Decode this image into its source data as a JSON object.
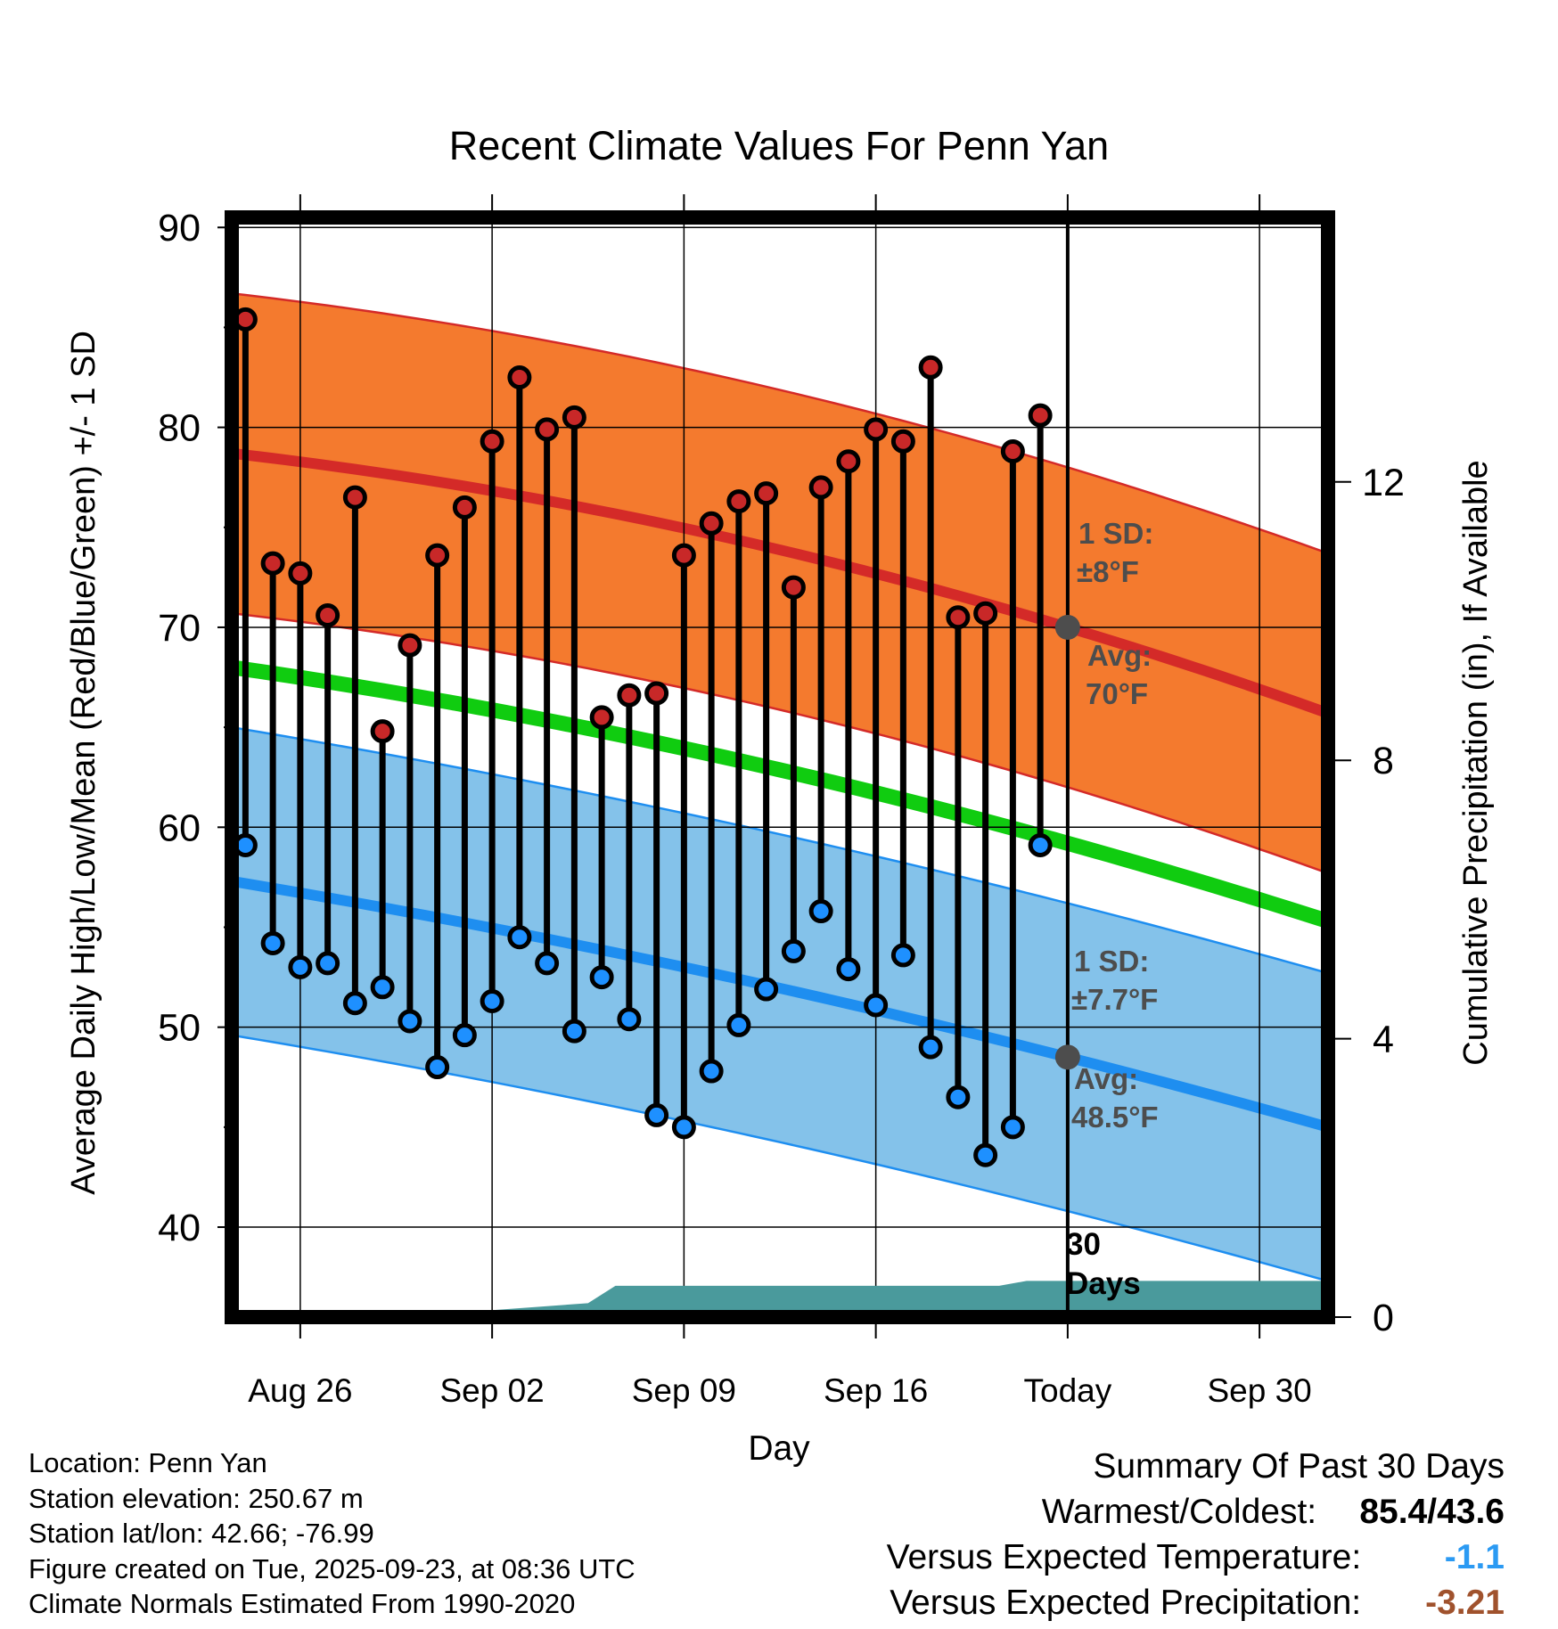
{
  "chart_data": {
    "type": "line",
    "title": "Recent Climate Values For Penn Yan",
    "xlabel": "Day",
    "ylabel": "Average Daily High/Low/Mean (Red/Blue/Green) +/- 1 SD",
    "y2label": "Cumulative Precipitation (in), If Available",
    "xlim": [
      -2.5,
      37.5
    ],
    "ylim": [
      35.5,
      90.5
    ],
    "y2lim": [
      0,
      15.8
    ],
    "x_ticks": [
      {
        "x": 0,
        "label": "Aug 26"
      },
      {
        "x": 7,
        "label": "Sep 02"
      },
      {
        "x": 14,
        "label": "Sep 09"
      },
      {
        "x": 21,
        "label": "Sep 16"
      },
      {
        "x": 28,
        "label": "Today"
      },
      {
        "x": 35,
        "label": "Sep 30"
      }
    ],
    "y_ticks": [
      40,
      50,
      60,
      70,
      80,
      90
    ],
    "y2_ticks": [
      0,
      4,
      8,
      12
    ],
    "today_x": 28,
    "normals": {
      "high_avg": {
        "x": [
          -2.5,
          28,
          37.5
        ],
        "y": [
          78.7,
          70.0,
          65.7
        ]
      },
      "high_sd": 8,
      "low_avg": {
        "x": [
          -2.5,
          28,
          37.5
        ],
        "y": [
          57.3,
          48.5,
          45.0
        ]
      },
      "low_sd": 7.7,
      "mean_avg": {
        "x": [
          -2.5,
          28,
          37.5
        ],
        "y": [
          68.0,
          59.2,
          55.3
        ]
      }
    },
    "series": [
      {
        "name": "Daily High",
        "x": [
          -2,
          -1,
          0,
          1,
          2,
          3,
          4,
          5,
          6,
          7,
          8,
          9,
          10,
          11,
          12,
          13,
          14,
          15,
          16,
          17,
          18,
          19,
          20,
          21,
          22,
          23,
          24,
          25,
          26,
          27
        ],
        "values": [
          85.4,
          73.2,
          72.7,
          70.6,
          76.5,
          64.8,
          69.1,
          73.6,
          76.0,
          79.3,
          82.5,
          79.9,
          80.5,
          65.5,
          66.6,
          66.7,
          73.6,
          75.2,
          76.3,
          76.7,
          72.0,
          77.0,
          78.3,
          79.9,
          79.3,
          83.0,
          70.5,
          70.7,
          78.8,
          80.6
        ]
      },
      {
        "name": "Daily Low",
        "x": [
          -2,
          -1,
          0,
          1,
          2,
          3,
          4,
          5,
          6,
          7,
          8,
          9,
          10,
          11,
          12,
          13,
          14,
          15,
          16,
          17,
          18,
          19,
          20,
          21,
          22,
          23,
          24,
          25,
          26,
          27
        ],
        "values": [
          59.1,
          54.2,
          53.0,
          53.2,
          51.2,
          52.0,
          50.3,
          48.0,
          49.6,
          51.3,
          54.5,
          53.2,
          49.8,
          52.5,
          50.4,
          45.6,
          45.0,
          47.8,
          50.1,
          51.9,
          53.8,
          55.8,
          52.9,
          51.1,
          53.6,
          49.0,
          46.5,
          43.6,
          45.0,
          59.1
        ]
      },
      {
        "name": "Cumulative Precipitation (in)",
        "x": [
          -2.5,
          0.5,
          1.5,
          7.0,
          10.5,
          11.5,
          25.5,
          26.5,
          37.5
        ],
        "values": [
          0.0,
          0.0,
          0.1,
          0.1,
          0.2,
          0.45,
          0.45,
          0.52,
          0.52
        ]
      }
    ],
    "annotations": {
      "high_sd_label": "1 SD:",
      "high_sd_value": "±8°F",
      "high_avg_label": "Avg:",
      "high_avg_value": "70°F",
      "low_sd_label": "1 SD:",
      "low_sd_value": "±7.7°F",
      "low_avg_label": "Avg:",
      "low_avg_value": "48.5°F",
      "days_number": "30",
      "days_word": "Days"
    },
    "colors": {
      "high_band": "#f47a2e",
      "high_line": "#d42a28",
      "low_band": "#84c2ea",
      "low_line": "#1e8ef0",
      "mean_line": "#10cc10",
      "precip": "#4a9a9c",
      "high_point": "#c82828",
      "low_point": "#1e90ff",
      "annotation": "#4d4d4d"
    }
  },
  "footer": {
    "location": "Location: Penn Yan",
    "elevation": "Station elevation: 250.67 m",
    "latlon": "Station lat/lon: 42.66; -76.99",
    "created": "Figure created on Tue, 2025-09-23, at 08:36 UTC",
    "normals": "Climate Normals Estimated From 1990-2020"
  },
  "summary": {
    "title": "Summary Of Past 30 Days",
    "warm_cold_label": "Warmest/Coldest:",
    "warm_cold_value": "85.4/43.6",
    "temp_label": "Versus Expected Temperature:",
    "temp_value": "-1.1",
    "temp_color": "#2b9af3",
    "precip_label": "Versus Expected Precipitation:",
    "precip_value": "-3.21",
    "precip_color": "#a0522d"
  }
}
